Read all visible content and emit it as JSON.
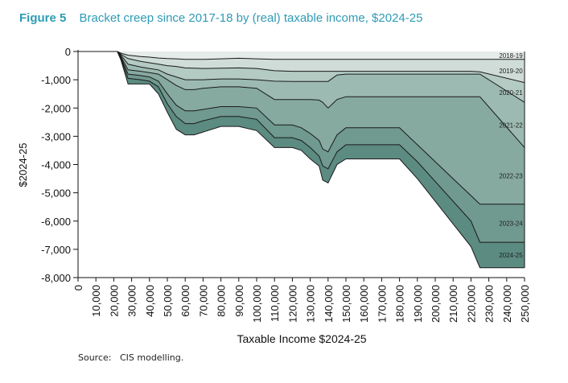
{
  "figure": {
    "label": "Figure 5",
    "title": "Bracket creep since 2017-18 by (real) taxable income, $2024-25"
  },
  "source": "Source:   CIS modelling.",
  "colors": {
    "title": "#2e9bb5",
    "layers": [
      "#e6ecea",
      "#cfdcd7",
      "#b4cbc3",
      "#9cbab1",
      "#86aaa0",
      "#70998f",
      "#5b8b81"
    ]
  },
  "chart_data": {
    "type": "area",
    "stacked": true,
    "title": "",
    "xlabel": "Taxable Income $2024-25",
    "ylabel": "$2024-25",
    "xlim": [
      0,
      250000
    ],
    "ylim": [
      -8000,
      0
    ],
    "x_ticks": [
      0,
      10000,
      20000,
      30000,
      40000,
      50000,
      60000,
      70000,
      80000,
      90000,
      100000,
      110000,
      120000,
      130000,
      140000,
      150000,
      160000,
      170000,
      180000,
      190000,
      200000,
      210000,
      220000,
      230000,
      240000,
      250000
    ],
    "x_tick_labels": [
      "0",
      "10,000",
      "20,000",
      "30,000",
      "40,000",
      "50,000",
      "60,000",
      "70,000",
      "80,000",
      "90,000",
      "100,000",
      "110,000",
      "120,000",
      "130,000",
      "140,000",
      "150,000",
      "160,000",
      "170,000",
      "180,000",
      "190,000",
      "200,000",
      "210,000",
      "220,000",
      "230,000",
      "240,000",
      "250,000"
    ],
    "y_ticks": [
      0,
      -1000,
      -2000,
      -3000,
      -4000,
      -5000,
      -6000,
      -7000,
      -8000
    ],
    "y_tick_labels": [
      "0",
      "-1,000",
      "-2,000",
      "-3,000",
      "-4,000",
      "-5,000",
      "-6,000",
      "-7,000",
      "-8,000"
    ],
    "grid": false,
    "legend": "inline labels at right",
    "x": [
      0,
      22000,
      24000,
      28000,
      35000,
      40000,
      45000,
      50000,
      55000,
      60000,
      65000,
      70000,
      80000,
      90000,
      100000,
      110000,
      120000,
      125000,
      130000,
      135000,
      137000,
      140000,
      145000,
      150000,
      160000,
      170000,
      180000,
      190000,
      200000,
      210000,
      220000,
      225000,
      250000
    ],
    "series": [
      {
        "name": "2018-19",
        "cumulative": [
          0,
          0,
          -60,
          -130,
          -180,
          -200,
          -230,
          -250,
          -260,
          -280,
          -280,
          -280,
          -260,
          -240,
          -260,
          -280,
          -280,
          -280,
          -280,
          -280,
          -280,
          -280,
          -280,
          -280,
          -280,
          -280,
          -280,
          -280,
          -280,
          -280,
          -280,
          -280,
          -280
        ]
      },
      {
        "name": "2019-20",
        "cumulative": [
          0,
          0,
          -100,
          -250,
          -350,
          -400,
          -450,
          -500,
          -530,
          -580,
          -590,
          -600,
          -590,
          -580,
          -600,
          -680,
          -700,
          -700,
          -700,
          -700,
          -700,
          -700,
          -700,
          -700,
          -700,
          -700,
          -700,
          -700,
          -700,
          -700,
          -700,
          -720,
          -1100
        ]
      },
      {
        "name": "2020-21",
        "cumulative": [
          0,
          0,
          -130,
          -450,
          -550,
          -600,
          -650,
          -800,
          -900,
          -1000,
          -1000,
          -1000,
          -970,
          -970,
          -1000,
          -1050,
          -1060,
          -1060,
          -1060,
          -1060,
          -1060,
          -1060,
          -830,
          -800,
          -800,
          -800,
          -800,
          -800,
          -800,
          -800,
          -800,
          -800,
          -1800
        ]
      },
      {
        "name": "2021-22",
        "cumulative": [
          0,
          0,
          -180,
          -650,
          -700,
          -750,
          -800,
          -1000,
          -1200,
          -1350,
          -1350,
          -1300,
          -1250,
          -1250,
          -1300,
          -1700,
          -1700,
          -1700,
          -1700,
          -1720,
          -1800,
          -2000,
          -1700,
          -1600,
          -1600,
          -1600,
          -1600,
          -1600,
          -1600,
          -1600,
          -1600,
          -1600,
          -3400
        ]
      },
      {
        "name": "2022-23",
        "cumulative": [
          0,
          0,
          -220,
          -800,
          -850,
          -900,
          -1050,
          -1500,
          -1900,
          -2100,
          -2100,
          -2050,
          -1950,
          -1950,
          -2000,
          -2600,
          -2600,
          -2700,
          -2900,
          -3150,
          -3450,
          -3550,
          -2950,
          -2700,
          -2700,
          -2700,
          -2700,
          -3300,
          -3900,
          -4500,
          -5100,
          -5400,
          -5400
        ]
      },
      {
        "name": "2023-24",
        "cumulative": [
          0,
          0,
          -250,
          -950,
          -1000,
          -1050,
          -1250,
          -1850,
          -2300,
          -2550,
          -2550,
          -2450,
          -2300,
          -2300,
          -2400,
          -3050,
          -3050,
          -3150,
          -3400,
          -3700,
          -4050,
          -4150,
          -3550,
          -3300,
          -3300,
          -3300,
          -3300,
          -3900,
          -4600,
          -5300,
          -6000,
          -6750,
          -6750
        ]
      },
      {
        "name": "2024-25",
        "cumulative": [
          0,
          0,
          -300,
          -1150,
          -1150,
          -1150,
          -1500,
          -2150,
          -2750,
          -2950,
          -2950,
          -2850,
          -2650,
          -2650,
          -2800,
          -3400,
          -3400,
          -3500,
          -3800,
          -4050,
          -4550,
          -4650,
          -4000,
          -3800,
          -3800,
          -3800,
          -3800,
          -4500,
          -5300,
          -6100,
          -6900,
          -7650,
          -7650
        ]
      }
    ]
  }
}
